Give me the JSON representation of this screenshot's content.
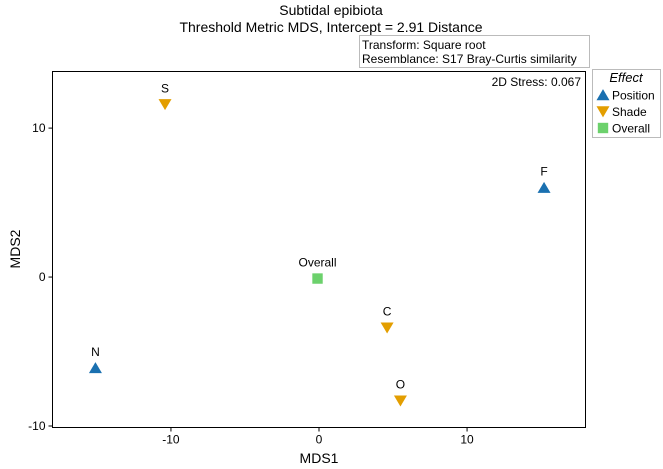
{
  "chart_data": {
    "type": "scatter",
    "title": "Subtidal epibiota",
    "subtitle": "Threshold Metric MDS, Intercept = 2.91 Distance",
    "info_box": [
      "Transform: Square root",
      "Resemblance: S17 Bray-Curtis similarity"
    ],
    "stress_label": "2D Stress: 0.067",
    "xlabel": "MDS1",
    "ylabel": "MDS2",
    "xlim": [
      -18,
      18
    ],
    "ylim": [
      -10.1,
      13.8
    ],
    "xticks": [
      -10,
      0,
      10
    ],
    "yticks": [
      -10,
      0,
      10
    ],
    "grid": false,
    "legend": {
      "title": "Effect",
      "placement": "outside-top-right",
      "entries": [
        {
          "name": "Position",
          "shape": "triangle-up",
          "color": "#1a70b0"
        },
        {
          "name": "Shade",
          "shape": "triangle-down",
          "color": "#e39e00"
        },
        {
          "name": "Overall",
          "shape": "square",
          "color": "#6cd16c"
        }
      ]
    },
    "points": [
      {
        "label": "S",
        "group": "Shade",
        "x": -10.4,
        "y": 11.6
      },
      {
        "label": "F",
        "group": "Position",
        "x": 15.2,
        "y": 6.0
      },
      {
        "label": "Overall",
        "group": "Overall",
        "x": -0.1,
        "y": -0.1
      },
      {
        "label": "C",
        "group": "Shade",
        "x": 4.6,
        "y": -3.4
      },
      {
        "label": "N",
        "group": "Position",
        "x": -15.1,
        "y": -6.1
      },
      {
        "label": "O",
        "group": "Shade",
        "x": 5.5,
        "y": -8.3
      }
    ]
  }
}
